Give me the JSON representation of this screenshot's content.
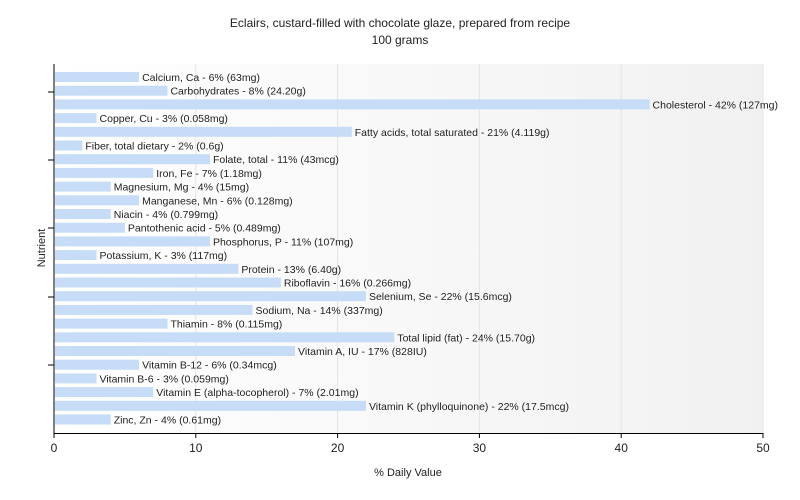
{
  "chart_data": {
    "type": "bar",
    "orientation": "horizontal",
    "title": "Eclairs, custard-filled with chocolate glaze, prepared from recipe",
    "subtitle": "100 grams",
    "xlabel": "% Daily Value",
    "ylabel": "Nutrient",
    "xlim": [
      0,
      50
    ],
    "xticks": [
      0,
      10,
      20,
      30,
      40,
      50
    ],
    "grid": true,
    "bar_color": "#c6dcf7",
    "categories": [
      "Calcium, Ca",
      "Carbohydrates",
      "Cholesterol",
      "Copper, Cu",
      "Fatty acids, total saturated",
      "Fiber, total dietary",
      "Folate, total",
      "Iron, Fe",
      "Magnesium, Mg",
      "Manganese, Mn",
      "Niacin",
      "Pantothenic acid",
      "Phosphorus, P",
      "Potassium, K",
      "Protein",
      "Riboflavin",
      "Selenium, Se",
      "Sodium, Na",
      "Thiamin",
      "Total lipid (fat)",
      "Vitamin A, IU",
      "Vitamin B-12",
      "Vitamin B-6",
      "Vitamin E (alpha-tocopherol)",
      "Vitamin K (phylloquinone)",
      "Zinc, Zn"
    ],
    "values": [
      6,
      8,
      42,
      3,
      21,
      2,
      11,
      7,
      4,
      6,
      4,
      5,
      11,
      3,
      13,
      16,
      22,
      14,
      8,
      24,
      17,
      6,
      3,
      7,
      22,
      4
    ],
    "labels": [
      "Calcium, Ca - 6% (63mg)",
      "Carbohydrates - 8% (24.20g)",
      "Cholesterol - 42% (127mg)",
      "Copper, Cu - 3% (0.058mg)",
      "Fatty acids, total saturated - 21% (4.119g)",
      "Fiber, total dietary - 2% (0.6g)",
      "Folate, total - 11% (43mcg)",
      "Iron, Fe - 7% (1.18mg)",
      "Magnesium, Mg - 4% (15mg)",
      "Manganese, Mn - 6% (0.128mg)",
      "Niacin - 4% (0.799mg)",
      "Pantothenic acid - 5% (0.489mg)",
      "Phosphorus, P - 11% (107mg)",
      "Potassium, K - 3% (117mg)",
      "Protein - 13% (6.40g)",
      "Riboflavin - 16% (0.266mg)",
      "Selenium, Se - 22% (15.6mcg)",
      "Sodium, Na - 14% (337mg)",
      "Thiamin - 8% (0.115mg)",
      "Total lipid (fat) - 24% (15.70g)",
      "Vitamin A, IU - 17% (828IU)",
      "Vitamin B-12 - 6% (0.34mcg)",
      "Vitamin B-6 - 3% (0.059mg)",
      "Vitamin E (alpha-tocopherol) - 7% (2.01mg)",
      "Vitamin K (phylloquinone) - 22% (17.5mcg)",
      "Zinc, Zn - 4% (0.61mg)"
    ]
  }
}
